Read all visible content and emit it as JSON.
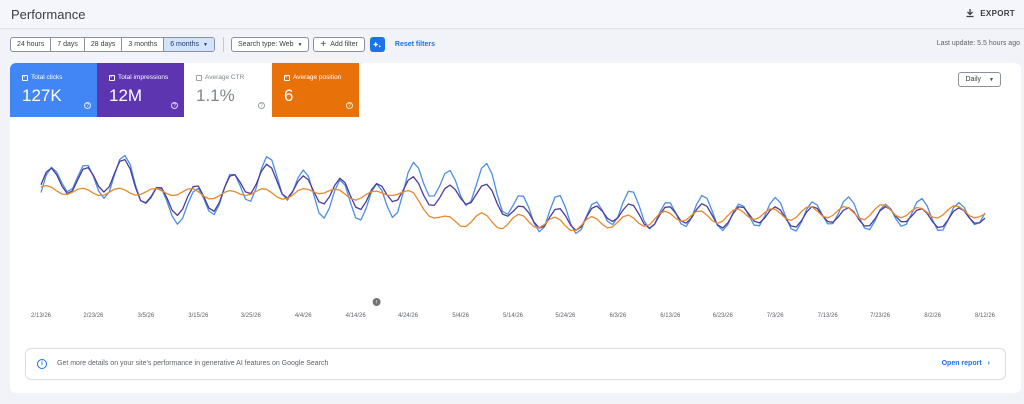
{
  "header": {
    "title": "Performance",
    "export_label": "EXPORT"
  },
  "filters": {
    "date_ranges": [
      {
        "label": "24 hours",
        "selected": false
      },
      {
        "label": "7 days",
        "selected": false
      },
      {
        "label": "28 days",
        "selected": false
      },
      {
        "label": "3 months",
        "selected": false
      },
      {
        "label": "6 months",
        "selected": true
      }
    ],
    "search_type": "Search type: Web",
    "add_filter": "Add filter",
    "reset": "Reset filters",
    "last_update": "Last update: 5.5 hours ago"
  },
  "metrics": {
    "clicks": {
      "label": "Total clicks",
      "value": "127K",
      "checked": true,
      "color": "#4285f4"
    },
    "impressions": {
      "label": "Total impressions",
      "value": "12M",
      "checked": true,
      "color": "#5e35b1"
    },
    "ctr": {
      "label": "Average CTR",
      "value": "1.1%",
      "checked": false
    },
    "position": {
      "label": "Average position",
      "value": "6",
      "checked": true,
      "color": "#e8710a"
    }
  },
  "granularity": "Daily",
  "banner": {
    "message": "Get more details on your site's performance in generative AI features on Google Search",
    "link": "Open report"
  },
  "chart_data": {
    "type": "line",
    "x_tick_labels": [
      "2/13/26",
      "2/23/26",
      "3/5/26",
      "3/15/26",
      "3/25/26",
      "4/4/26",
      "4/14/26",
      "4/24/26",
      "5/4/26",
      "5/14/26",
      "5/24/26",
      "6/3/26",
      "6/13/26",
      "6/23/26",
      "7/3/26",
      "7/13/26",
      "7/23/26",
      "8/2/26",
      "8/12/26"
    ],
    "x_start": "2/13/26",
    "x_end": "8/12/26",
    "annotation": {
      "date": "4/18/26",
      "icon": "info-marker"
    },
    "y_range": [
      0,
      100
    ],
    "grid": false,
    "series": [
      {
        "name": "Total clicks",
        "color": "#4d8fe0",
        "keypoints": [
          [
            0,
            58
          ],
          [
            2,
            68
          ],
          [
            4,
            70
          ],
          [
            7,
            68
          ],
          [
            9,
            73
          ],
          [
            11,
            52
          ],
          [
            13,
            52
          ],
          [
            15,
            42
          ],
          [
            18,
            58
          ],
          [
            20,
            66
          ],
          [
            22,
            68
          ],
          [
            25,
            66
          ],
          [
            27,
            62
          ],
          [
            29,
            48
          ],
          [
            30,
            48
          ],
          [
            32,
            52
          ],
          [
            35,
            54
          ],
          [
            37,
            62
          ],
          [
            39,
            70
          ],
          [
            41,
            63
          ],
          [
            43,
            62
          ],
          [
            45,
            63
          ],
          [
            48,
            45
          ],
          [
            50,
            40
          ],
          [
            52,
            40
          ],
          [
            55,
            41
          ],
          [
            57,
            45
          ],
          [
            59,
            45
          ],
          [
            62,
            42
          ],
          [
            64,
            42
          ],
          [
            66,
            42
          ],
          [
            68,
            42
          ],
          [
            70,
            40
          ],
          [
            72,
            42
          ],
          [
            74,
            40
          ],
          [
            76,
            42
          ],
          [
            78,
            42
          ],
          [
            80,
            42
          ],
          [
            82,
            42
          ],
          [
            84,
            40
          ],
          [
            86,
            40
          ],
          [
            88,
            42
          ],
          [
            90,
            40
          ],
          [
            92,
            42
          ],
          [
            94,
            40
          ]
        ],
        "amplitudes": [
          [
            0,
            12
          ],
          [
            15,
            14
          ],
          [
            30,
            16
          ],
          [
            48,
            14
          ],
          [
            60,
            12
          ],
          [
            94,
            10
          ]
        ]
      },
      {
        "name": "Total impressions",
        "color": "#4a3d9a",
        "keypoints": [
          [
            0,
            62
          ],
          [
            2,
            67
          ],
          [
            4,
            70
          ],
          [
            7,
            68
          ],
          [
            9,
            72
          ],
          [
            11,
            55
          ],
          [
            13,
            52
          ],
          [
            15,
            48
          ],
          [
            18,
            60
          ],
          [
            20,
            66
          ],
          [
            22,
            67
          ],
          [
            25,
            66
          ],
          [
            27,
            60
          ],
          [
            29,
            55
          ],
          [
            30,
            58
          ],
          [
            32,
            56
          ],
          [
            35,
            58
          ],
          [
            37,
            60
          ],
          [
            39,
            58
          ],
          [
            41,
            56
          ],
          [
            43,
            55
          ],
          [
            45,
            56
          ],
          [
            48,
            40
          ],
          [
            50,
            36
          ],
          [
            52,
            38
          ],
          [
            55,
            40
          ],
          [
            57,
            42
          ],
          [
            59,
            41
          ],
          [
            62,
            40
          ],
          [
            64,
            40
          ],
          [
            66,
            42
          ],
          [
            68,
            40
          ],
          [
            70,
            40
          ],
          [
            72,
            40
          ],
          [
            74,
            40
          ],
          [
            76,
            40
          ],
          [
            78,
            40
          ],
          [
            80,
            40
          ],
          [
            82,
            40
          ],
          [
            84,
            40
          ],
          [
            86,
            40
          ],
          [
            88,
            40
          ],
          [
            90,
            38
          ],
          [
            92,
            40
          ],
          [
            94,
            38
          ]
        ],
        "amplitudes": [
          [
            0,
            10
          ],
          [
            15,
            12
          ],
          [
            30,
            10
          ],
          [
            45,
            8
          ],
          [
            48,
            8
          ],
          [
            60,
            8
          ],
          [
            94,
            6
          ]
        ]
      },
      {
        "name": "Average position",
        "color": "#e8892e",
        "keypoints": [
          [
            0,
            60
          ],
          [
            3,
            60
          ],
          [
            5,
            58
          ],
          [
            8,
            58
          ],
          [
            10,
            60
          ],
          [
            12,
            58
          ],
          [
            15,
            58
          ],
          [
            18,
            56
          ],
          [
            20,
            58
          ],
          [
            22,
            58
          ],
          [
            25,
            56
          ],
          [
            27,
            60
          ],
          [
            29,
            58
          ],
          [
            31,
            56
          ],
          [
            33,
            56
          ],
          [
            35,
            58
          ],
          [
            37,
            56
          ],
          [
            38,
            50
          ],
          [
            40,
            35
          ],
          [
            42,
            35
          ],
          [
            44,
            38
          ],
          [
            46,
            36
          ],
          [
            48,
            36
          ],
          [
            50,
            34
          ],
          [
            52,
            35
          ],
          [
            54,
            34
          ],
          [
            56,
            34
          ],
          [
            58,
            36
          ],
          [
            60,
            38
          ],
          [
            62,
            38
          ],
          [
            64,
            40
          ],
          [
            66,
            40
          ],
          [
            68,
            40
          ],
          [
            70,
            40
          ],
          [
            72,
            42
          ],
          [
            74,
            42
          ],
          [
            76,
            42
          ],
          [
            78,
            42
          ],
          [
            80,
            44
          ],
          [
            82,
            42
          ],
          [
            84,
            44
          ],
          [
            86,
            42
          ],
          [
            88,
            44
          ],
          [
            90,
            42
          ],
          [
            92,
            44
          ],
          [
            94,
            40
          ]
        ],
        "amplitudes": [
          [
            0,
            3
          ],
          [
            36,
            3
          ],
          [
            40,
            5
          ],
          [
            60,
            5
          ],
          [
            94,
            4
          ]
        ]
      }
    ],
    "note": "Daily series with weekly oscillation; keypoints are [tick-index-scaled day, percent-of-plot-height] estimates read from the chart."
  }
}
